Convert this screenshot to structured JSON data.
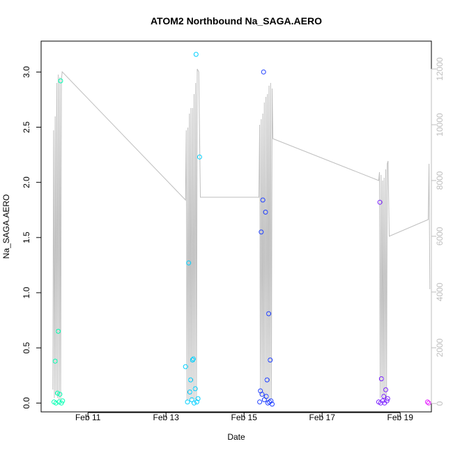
{
  "chart_data": {
    "type": "scatter",
    "title": "ATOM2 Northbound Na_SAGA.AERO",
    "xlabel": "Date",
    "ylabel": "Na_SAGA.AERO",
    "x_axis": {
      "unit": "days since Feb 10 00:00",
      "range": [
        -0.2,
        9.8
      ],
      "ticks": [
        {
          "value": 1,
          "label": "Feb 11"
        },
        {
          "value": 3,
          "label": "Feb 13"
        },
        {
          "value": 5,
          "label": "Feb 15"
        },
        {
          "value": 7,
          "label": "Feb 17"
        },
        {
          "value": 9,
          "label": "Feb 19"
        }
      ]
    },
    "y_axis_left": {
      "range": [
        -0.08,
        3.28
      ],
      "ticks": [
        {
          "value": 0.0,
          "label": "0.0"
        },
        {
          "value": 0.5,
          "label": "0.5"
        },
        {
          "value": 1.0,
          "label": "1.0"
        },
        {
          "value": 1.5,
          "label": "1.5"
        },
        {
          "value": 2.0,
          "label": "2.0"
        },
        {
          "value": 2.5,
          "label": "2.5"
        },
        {
          "value": 3.0,
          "label": "3.0"
        }
      ]
    },
    "y_axis_right": {
      "description": "secondary axis for gray line (altitude-like, unlabeled)",
      "range": [
        -300,
        13000
      ],
      "ticks": [
        {
          "value": 0,
          "label": "0"
        },
        {
          "value": 2000,
          "label": "2000"
        },
        {
          "value": 4000,
          "label": "4000"
        },
        {
          "value": 6000,
          "label": "6000"
        },
        {
          "value": 8000,
          "label": "8000"
        },
        {
          "value": 10000,
          "label": "10000"
        },
        {
          "value": 12000,
          "label": "12000"
        }
      ],
      "color": "#bebebe"
    },
    "grid": false,
    "points": [
      {
        "x": 0.13,
        "y": 0.01,
        "color": "#00ffb2"
      },
      {
        "x": 0.16,
        "y": 0.38,
        "color": "#00ffb2"
      },
      {
        "x": 0.18,
        "y": 0.0,
        "color": "#00ffb2"
      },
      {
        "x": 0.22,
        "y": 0.09,
        "color": "#00ffb2"
      },
      {
        "x": 0.24,
        "y": 0.65,
        "color": "#00ffb2"
      },
      {
        "x": 0.26,
        "y": 0.01,
        "color": "#00ffb2"
      },
      {
        "x": 0.28,
        "y": 0.08,
        "color": "#00ffb2"
      },
      {
        "x": 0.3,
        "y": 2.92,
        "color": "#00ffb2"
      },
      {
        "x": 0.32,
        "y": 0.0,
        "color": "#00ffb2"
      },
      {
        "x": 0.35,
        "y": 0.02,
        "color": "#00ffb2"
      },
      {
        "x": 3.5,
        "y": 0.33,
        "color": "#00d0ff"
      },
      {
        "x": 3.55,
        "y": 0.01,
        "color": "#00d0ff"
      },
      {
        "x": 3.58,
        "y": 1.27,
        "color": "#00d0ff"
      },
      {
        "x": 3.61,
        "y": 0.1,
        "color": "#00d0ff"
      },
      {
        "x": 3.63,
        "y": 0.21,
        "color": "#00d0ff"
      },
      {
        "x": 3.66,
        "y": 0.03,
        "color": "#00d0ff"
      },
      {
        "x": 3.68,
        "y": 0.39,
        "color": "#00d0ff"
      },
      {
        "x": 3.7,
        "y": 0.4,
        "color": "#00d0ff"
      },
      {
        "x": 3.72,
        "y": 0.0,
        "color": "#00d0ff"
      },
      {
        "x": 3.75,
        "y": 0.13,
        "color": "#00d0ff"
      },
      {
        "x": 3.77,
        "y": 3.16,
        "color": "#00d0ff"
      },
      {
        "x": 3.79,
        "y": 0.01,
        "color": "#00d0ff"
      },
      {
        "x": 3.82,
        "y": 0.04,
        "color": "#00d0ff"
      },
      {
        "x": 3.86,
        "y": 2.23,
        "color": "#00d0ff"
      },
      {
        "x": 5.4,
        "y": 0.01,
        "color": "#1f3fff"
      },
      {
        "x": 5.42,
        "y": 0.11,
        "color": "#1f3fff"
      },
      {
        "x": 5.44,
        "y": 1.55,
        "color": "#1f3fff"
      },
      {
        "x": 5.46,
        "y": 0.08,
        "color": "#1f3fff"
      },
      {
        "x": 5.48,
        "y": 1.84,
        "color": "#1f3fff"
      },
      {
        "x": 5.5,
        "y": 3.0,
        "color": "#1f3fff"
      },
      {
        "x": 5.52,
        "y": 0.03,
        "color": "#1f3fff"
      },
      {
        "x": 5.55,
        "y": 1.73,
        "color": "#1f3fff"
      },
      {
        "x": 5.57,
        "y": 0.06,
        "color": "#1f3fff"
      },
      {
        "x": 5.59,
        "y": 0.21,
        "color": "#1f3fff"
      },
      {
        "x": 5.61,
        "y": 0.0,
        "color": "#1f3fff"
      },
      {
        "x": 5.63,
        "y": 0.81,
        "color": "#1f3fff"
      },
      {
        "x": 5.65,
        "y": 0.01,
        "color": "#1f3fff"
      },
      {
        "x": 5.67,
        "y": 0.39,
        "color": "#1f3fff"
      },
      {
        "x": 5.69,
        "y": 0.02,
        "color": "#1f3fff"
      },
      {
        "x": 5.72,
        "y": -0.01,
        "color": "#1f3fff"
      },
      {
        "x": 8.45,
        "y": 0.01,
        "color": "#7a1fff"
      },
      {
        "x": 8.48,
        "y": 1.82,
        "color": "#7a1fff"
      },
      {
        "x": 8.5,
        "y": 0.0,
        "color": "#7a1fff"
      },
      {
        "x": 8.52,
        "y": 0.22,
        "color": "#7a1fff"
      },
      {
        "x": 8.55,
        "y": 0.02,
        "color": "#7a1fff"
      },
      {
        "x": 8.58,
        "y": 0.06,
        "color": "#7a1fff"
      },
      {
        "x": 8.6,
        "y": 0.0,
        "color": "#7a1fff"
      },
      {
        "x": 8.63,
        "y": 0.12,
        "color": "#7a1fff"
      },
      {
        "x": 8.66,
        "y": 0.02,
        "color": "#7a1fff"
      },
      {
        "x": 8.68,
        "y": 0.04,
        "color": "#7a1fff"
      },
      {
        "x": 9.7,
        "y": 0.01,
        "color": "#e61fff"
      },
      {
        "x": 9.73,
        "y": 0.0,
        "color": "#e61fff"
      }
    ],
    "line": {
      "color": "#bebebe",
      "axis": "right",
      "x": [
        0.1,
        0.12,
        0.14,
        0.16,
        0.18,
        0.2,
        0.22,
        0.24,
        0.26,
        0.28,
        0.3,
        0.32,
        0.34,
        3.5,
        3.52,
        3.54,
        3.56,
        3.58,
        3.6,
        3.62,
        3.64,
        3.66,
        3.68,
        3.7,
        3.72,
        3.74,
        3.76,
        3.78,
        3.8,
        3.84,
        3.88,
        5.38,
        5.4,
        5.42,
        5.44,
        5.46,
        5.48,
        5.5,
        5.52,
        5.54,
        5.56,
        5.58,
        5.6,
        5.62,
        5.64,
        5.66,
        5.68,
        5.7,
        5.72,
        5.74,
        8.45,
        8.47,
        8.49,
        8.51,
        8.53,
        8.55,
        8.57,
        8.59,
        8.61,
        8.63,
        8.65,
        8.67,
        8.69,
        8.72,
        9.72,
        9.74,
        9.76
      ],
      "y": [
        500,
        9800,
        200,
        10300,
        300,
        11500,
        200,
        11800,
        150,
        11700,
        150,
        11600,
        11900,
        7300,
        9800,
        100,
        9900,
        150,
        10400,
        200,
        10600,
        150,
        10600,
        200,
        11100,
        150,
        11500,
        100,
        12000,
        11900,
        7400,
        7400,
        10000,
        250,
        10200,
        300,
        10400,
        200,
        10800,
        150,
        11000,
        100,
        11100,
        150,
        11400,
        100,
        11500,
        150,
        11300,
        9500,
        8000,
        8300,
        200,
        8200,
        300,
        8000,
        200,
        8100,
        150,
        8400,
        200,
        8600,
        8700,
        6000,
        6600,
        8600,
        4100
      ]
    }
  }
}
